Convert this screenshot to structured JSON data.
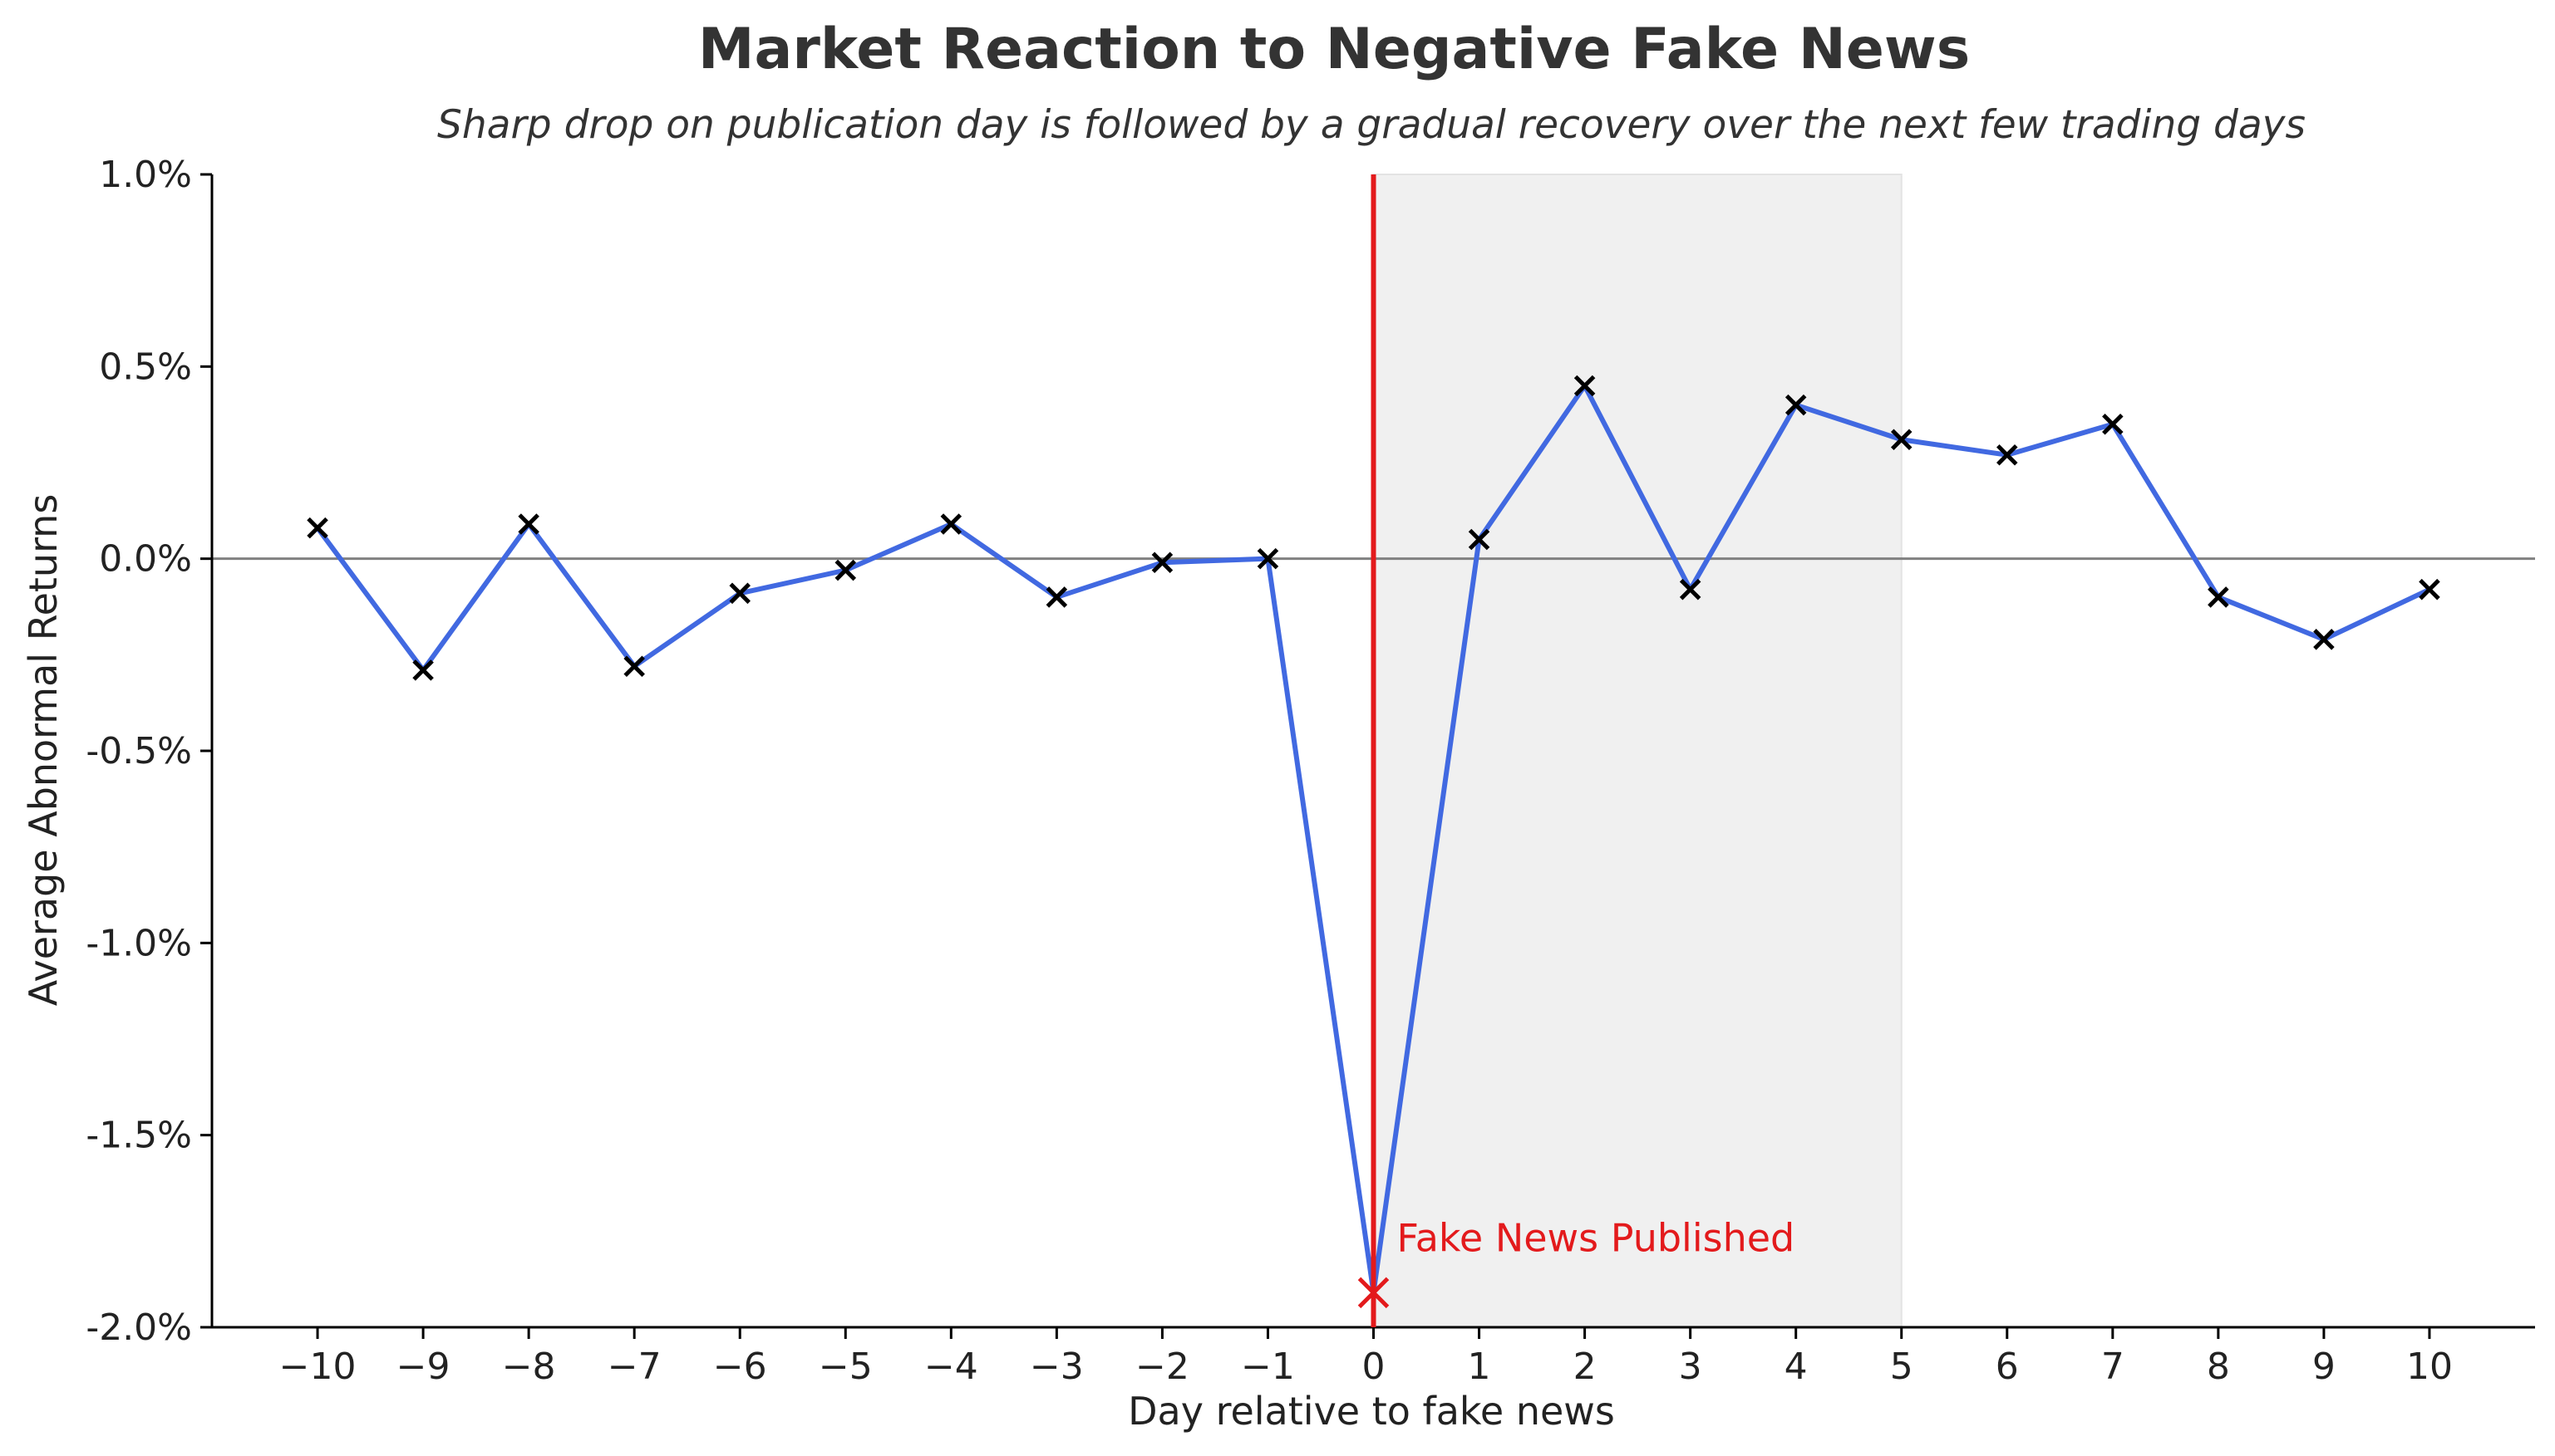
{
  "chart_data": {
    "type": "line",
    "title": "Market Reaction to Negative Fake News",
    "subtitle": "Sharp drop on publication day is followed by a gradual recovery over the next few trading days",
    "xlabel": "Day relative to fake news",
    "ylabel": "Average Abnormal Returns",
    "xlim": [
      -11,
      11
    ],
    "ylim": [
      -2.0,
      1.0
    ],
    "x_ticks": [
      -10,
      -9,
      -8,
      -7,
      -6,
      -5,
      -4,
      -3,
      -2,
      -1,
      0,
      1,
      2,
      3,
      4,
      5,
      6,
      7,
      8,
      9,
      10
    ],
    "x_tick_labels": [
      "−10",
      "−9",
      "−8",
      "−7",
      "−6",
      "−5",
      "−4",
      "−3",
      "−2",
      "−1",
      "0",
      "1",
      "2",
      "3",
      "4",
      "5",
      "6",
      "7",
      "8",
      "9",
      "10"
    ],
    "y_ticks": [
      1.0,
      0.5,
      0.0,
      -0.5,
      -1.0,
      -1.5,
      -2.0
    ],
    "y_tick_labels": [
      "1.0%",
      "0.5%",
      "0.0%",
      "-0.5%",
      "-1.0%",
      "-1.5%",
      "-2.0%"
    ],
    "series": [
      {
        "x": [
          -10,
          -9,
          -8,
          -7,
          -6,
          -5,
          -4,
          -3,
          -2,
          -1,
          0,
          1,
          2,
          3,
          4,
          5,
          6,
          7,
          8,
          9,
          10
        ],
        "values": [
          0.08,
          -0.29,
          0.09,
          -0.28,
          -0.09,
          -0.03,
          0.09,
          -0.1,
          -0.01,
          0.0,
          -1.91,
          0.05,
          0.45,
          -0.08,
          0.4,
          0.31,
          0.27,
          0.35,
          -0.1,
          -0.21,
          -0.08
        ],
        "color": "#4169e1",
        "marker": "x",
        "marker_color": "#000000"
      }
    ],
    "highlight_point": {
      "x": 0,
      "y": -1.91,
      "color": "#e31a1c"
    },
    "event_line": {
      "x": 0,
      "color": "#e31a1c"
    },
    "shaded_region": {
      "x_start": 0,
      "x_end": 5,
      "color": "#f0f0f0"
    },
    "zero_line": {
      "y": 0,
      "color": "#808080"
    },
    "annotation": {
      "text": "Fake News Published",
      "x": 0,
      "y": -1.91,
      "color": "#e31a1c"
    },
    "grid": false,
    "legend": "none"
  }
}
